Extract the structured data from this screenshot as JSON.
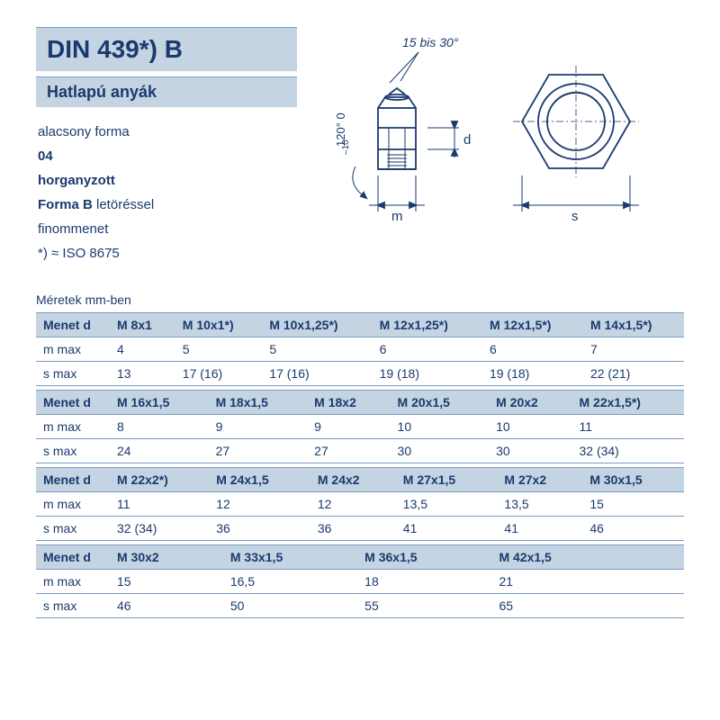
{
  "header": {
    "title": "DIN 439*) B",
    "subtitle": "Hatlapú anyák",
    "desc_lines": [
      {
        "text": "alacsony forma",
        "bold": false
      },
      {
        "text": "04",
        "bold": true
      },
      {
        "text": "horganyzott",
        "bold": true
      },
      {
        "text": "Forma B letöréssel",
        "partial_bold": "Forma B",
        "rest": " letöréssel"
      },
      {
        "text": "finommenet",
        "bold": false
      },
      {
        "text": "*) ≈ ISO 8675",
        "bold": false
      }
    ]
  },
  "diagram": {
    "angle_label": "15 bis 30°",
    "chamfer_angle": "120° 0\n    –10",
    "m_label": "m",
    "d_label": "d",
    "s_label": "s",
    "stroke": "#1a3a6e",
    "stroke_width": 1.8
  },
  "dimensions_label": "Méretek mm-ben",
  "table": {
    "row_labels": [
      "Menet d",
      "m max",
      "s max"
    ],
    "blocks": [
      {
        "cols": [
          "M 8x1",
          "M 10x1*)",
          "M 10x1,25*)",
          "M 12x1,25*)",
          "M 12x1,5*)",
          "M 14x1,5*)"
        ],
        "m": [
          "4",
          "5",
          "5",
          "6",
          "6",
          "7"
        ],
        "s": [
          "13",
          "17 (16)",
          "17 (16)",
          "19 (18)",
          "19 (18)",
          "22 (21)"
        ]
      },
      {
        "cols": [
          "M 16x1,5",
          "M 18x1,5",
          "M 18x2",
          "M 20x1,5",
          "M 20x2",
          "M 22x1,5*)"
        ],
        "m": [
          "8",
          "9",
          "9",
          "10",
          "10",
          "11"
        ],
        "s": [
          "24",
          "27",
          "27",
          "30",
          "30",
          "32 (34)"
        ]
      },
      {
        "cols": [
          "M 22x2*)",
          "M 24x1,5",
          "M 24x2",
          "M 27x1,5",
          "M 27x2",
          "M 30x1,5"
        ],
        "m": [
          "11",
          "12",
          "12",
          "13,5",
          "13,5",
          "15"
        ],
        "s": [
          "32 (34)",
          "36",
          "36",
          "41",
          "41",
          "46"
        ]
      },
      {
        "cols": [
          "M 30x2",
          "M 33x1,5",
          "M 36x1,5",
          "M 42x1,5",
          "",
          ""
        ],
        "m": [
          "15",
          "16,5",
          "18",
          "21",
          "",
          ""
        ],
        "s": [
          "46",
          "50",
          "55",
          "65",
          "",
          ""
        ]
      }
    ]
  },
  "colors": {
    "header_bg": "#c5d4e3",
    "border": "#7a9bc4",
    "text": "#1a3a6e",
    "page_bg": "#ffffff"
  },
  "typography": {
    "title_fontsize": 28,
    "subtitle_fontsize": 18,
    "body_fontsize": 15,
    "table_fontsize": 14
  }
}
